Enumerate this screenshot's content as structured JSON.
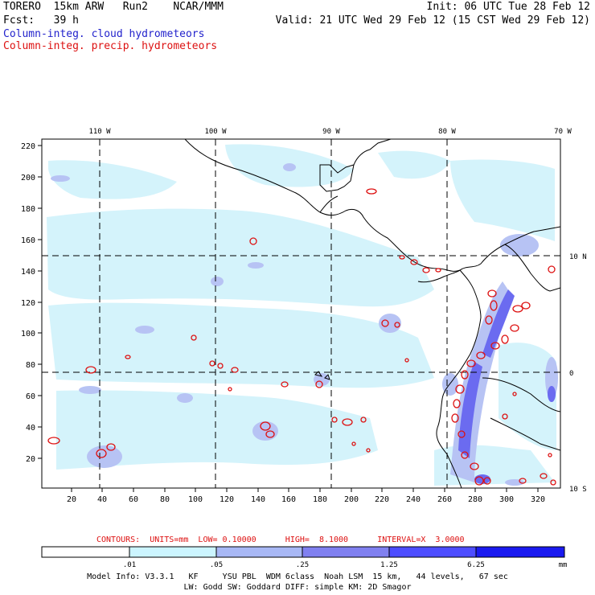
{
  "header": {
    "line1_left": "TORERO  15km ARW   Run2    NCAR/MMM",
    "line1_right": "Init: 06 UTC Tue 28 Feb 12",
    "line2_left": "Fcst:   39 h",
    "line2_right": "Valid: 21 UTC Wed 29 Feb 12 (15 CST Wed 29 Feb 12)",
    "legend_cloud": "Column-integ. cloud hydrometeors",
    "legend_precip": "Column-integ. precip. hydrometeors"
  },
  "map": {
    "lon_labels": [
      "110 W",
      "100 W",
      "90 W",
      "80 W",
      "70 W"
    ],
    "lat_labels": [
      "10 N",
      "0",
      "10 S"
    ],
    "y_ticks": [
      "220",
      "200",
      "180",
      "160",
      "140",
      "120",
      "100",
      "80",
      "60",
      "40",
      "20"
    ],
    "x_ticks": [
      "20",
      "40",
      "60",
      "80",
      "100",
      "120",
      "140",
      "160",
      "180",
      "200",
      "220",
      "240",
      "260",
      "280",
      "300",
      "320"
    ]
  },
  "contours_note": {
    "label": "CONTOURS:  UNITS=mm  LOW= 0.10000      HIGH=  8.1000      INTERVAL=X  3.0000"
  },
  "colorbar": {
    "values": [
      ".01",
      ".05",
      ".25",
      "1.25",
      "6.25"
    ],
    "unit": "mm",
    "colors": [
      "#ffffff",
      "#ccf5ff",
      "#a8b8f5",
      "#8080f0",
      "#4d4dff",
      "#1a1af0"
    ]
  },
  "footer": {
    "line1": "Model Info: V3.3.1   KF     YSU PBL  WDM 6class  Noah LSM  15 km,   44 levels,   67 sec",
    "line2": "LW: Godd SW: Goddard DIFF: simple KM: 2D Smagor"
  }
}
